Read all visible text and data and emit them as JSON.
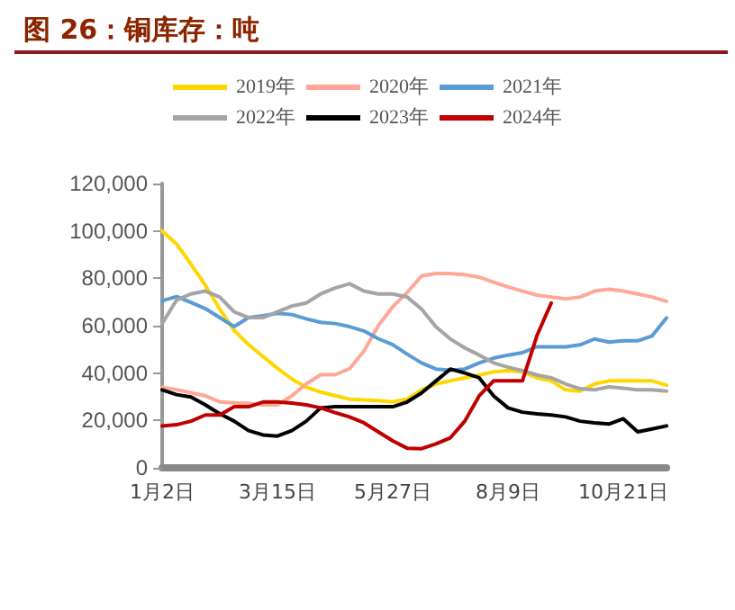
{
  "chart_data": {
    "type": "line",
    "title": "图 26：铜库存：吨",
    "categories": [
      "1月2日",
      null,
      null,
      null,
      null,
      null,
      null,
      null,
      "3月15日",
      null,
      null,
      null,
      null,
      null,
      null,
      null,
      "5月27日",
      null,
      null,
      null,
      null,
      null,
      null,
      null,
      "8月9日",
      null,
      null,
      null,
      null,
      null,
      null,
      null,
      "10月21日",
      null,
      null,
      null
    ],
    "series": [
      {
        "name": "2019年",
        "color": "#ffd700",
        "values": [
          100000,
          94500,
          86000,
          77000,
          67000,
          58000,
          52000,
          47000,
          42000,
          37500,
          34000,
          32000,
          30500,
          29000,
          28700,
          28400,
          27800,
          29100,
          32900,
          35400,
          36700,
          38000,
          39200,
          40500,
          41000,
          40500,
          38000,
          36700,
          32900,
          32400,
          35400,
          36700,
          36700,
          36700,
          36700,
          34900
        ]
      },
      {
        "name": "2020年",
        "color": "#ffa898",
        "values": [
          34000,
          33000,
          31700,
          30400,
          27800,
          27400,
          27200,
          26600,
          26600,
          30400,
          35400,
          39300,
          39300,
          41800,
          49300,
          60000,
          68000,
          74000,
          81000,
          82000,
          82000,
          81500,
          80500,
          78400,
          76400,
          74600,
          72900,
          72100,
          71300,
          72100,
          74600,
          75400,
          74600,
          73400,
          72100,
          70300
        ]
      },
      {
        "name": "2021年",
        "color": "#5b9bd5",
        "values": [
          70500,
          72300,
          69800,
          67200,
          63400,
          59600,
          63400,
          64200,
          65200,
          64700,
          62900,
          61400,
          60900,
          59600,
          57800,
          54500,
          52000,
          48000,
          44300,
          41700,
          41200,
          41700,
          44300,
          46300,
          47600,
          48600,
          51100,
          51100,
          51100,
          51900,
          54400,
          53100,
          53600,
          53600,
          55700,
          63300
        ]
      },
      {
        "name": "2022年",
        "color": "#a5a5a5",
        "values": [
          60900,
          70800,
          73400,
          74600,
          72100,
          65800,
          63400,
          63400,
          65800,
          68300,
          69600,
          73400,
          75900,
          77700,
          74600,
          73400,
          73400,
          72100,
          67000,
          59500,
          54400,
          50600,
          47600,
          44300,
          42500,
          41000,
          39200,
          38000,
          35400,
          33400,
          32900,
          34200,
          33600,
          32900,
          32900,
          32400
        ]
      },
      {
        "name": "2023年",
        "color": "#000000",
        "values": [
          32900,
          30900,
          29900,
          26600,
          22800,
          19700,
          15700,
          13900,
          13400,
          15700,
          19700,
          25300,
          25800,
          25800,
          25800,
          25800,
          25800,
          27800,
          31600,
          36700,
          41700,
          40000,
          38000,
          30400,
          25300,
          23500,
          22800,
          22300,
          21500,
          19700,
          19000,
          18500,
          20700,
          15200,
          16400,
          17700
        ]
      },
      {
        "name": "2024年",
        "color": "#c00000",
        "values": [
          17700,
          18200,
          19700,
          22300,
          22300,
          25800,
          25800,
          27800,
          27800,
          27300,
          26600,
          25300,
          23300,
          21500,
          19000,
          15200,
          11400,
          8300,
          8100,
          10100,
          12700,
          19700,
          30400,
          36700,
          36700,
          36700,
          55700,
          69600,
          null,
          null,
          null,
          null,
          null,
          null,
          null,
          null
        ]
      }
    ],
    "ylim": [
      0,
      120000
    ],
    "yticks": [
      0,
      {
        "value": 20000,
        "label": "20,000"
      },
      {
        "value": 40000,
        "label": "40,000"
      },
      {
        "value": 60000,
        "label": "60,000"
      },
      {
        "value": 80000,
        "label": "80,000"
      },
      {
        "value": 100000,
        "label": "100,000"
      },
      {
        "value": 120000,
        "label": "120,000"
      }
    ],
    "legend": "top",
    "grid": false,
    "marker": "none",
    "line_style": "solid"
  }
}
